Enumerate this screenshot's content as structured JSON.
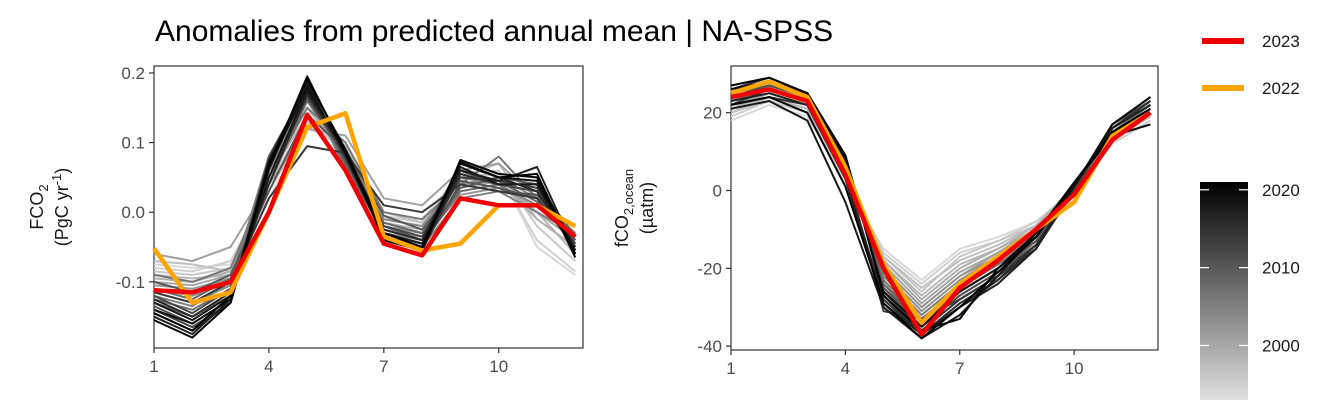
{
  "title": "Anomalies from predicted annual mean | NA-SPSS",
  "legend": {
    "items": [
      {
        "label": "2023",
        "color": "#ee0000"
      },
      {
        "label": "2022",
        "color": "#ffa500"
      }
    ]
  },
  "colorbar": {
    "range": [
      1993,
      2021
    ],
    "ticks": [
      2000,
      2010,
      2020
    ],
    "color_low": "#e0e0e0",
    "color_high": "#000000"
  },
  "chart_data": [
    {
      "type": "line",
      "ylabel_line1": "FCO",
      "ylabel_sub": "2",
      "ylabel_line2_pre": "(PgC yr",
      "ylabel_sup": "-1",
      "ylabel_line2_post": ")",
      "x": [
        1,
        2,
        3,
        4,
        5,
        6,
        7,
        8,
        9,
        10,
        11,
        12
      ],
      "xlim": [
        1,
        12.2
      ],
      "ylim": [
        -0.195,
        0.21
      ],
      "xticks": [
        1,
        4,
        7,
        10
      ],
      "yticks": [
        -0.1,
        0.0,
        0.1,
        0.2
      ],
      "ytick_labels": [
        "-0.1",
        "0.0",
        "0.1",
        "0.2"
      ],
      "highlight": [
        {
          "name": "2023",
          "color": "#ee0000",
          "values": [
            -0.112,
            -0.115,
            -0.1,
            0.0,
            0.14,
            0.06,
            -0.045,
            -0.062,
            0.02,
            0.01,
            0.01,
            -0.035
          ]
        },
        {
          "name": "2022",
          "color": "#ffa500",
          "values": [
            -0.052,
            -0.13,
            -0.115,
            0.0,
            0.122,
            0.142,
            -0.035,
            -0.055,
            -0.045,
            0.01,
            0.01,
            -0.02
          ]
        }
      ],
      "background": [
        {
          "year": 1994,
          "values": [
            -0.075,
            -0.08,
            -0.075,
            0.02,
            0.12,
            0.1,
            -0.01,
            -0.01,
            0.055,
            0.06,
            -0.05,
            -0.09
          ]
        },
        {
          "year": 1995,
          "values": [
            -0.08,
            -0.085,
            -0.07,
            0.03,
            0.125,
            0.09,
            -0.005,
            -0.015,
            0.05,
            0.055,
            -0.04,
            -0.085
          ]
        },
        {
          "year": 1996,
          "values": [
            -0.085,
            -0.09,
            -0.08,
            0.04,
            0.135,
            0.085,
            -0.01,
            -0.02,
            0.045,
            0.06,
            -0.02,
            -0.07
          ]
        },
        {
          "year": 1997,
          "values": [
            -0.07,
            -0.075,
            -0.085,
            0.03,
            0.13,
            0.095,
            0.0,
            -0.015,
            0.05,
            0.07,
            -0.01,
            -0.05
          ]
        },
        {
          "year": 1998,
          "values": [
            -0.09,
            -0.095,
            -0.09,
            0.05,
            0.14,
            0.09,
            -0.015,
            -0.025,
            0.04,
            0.05,
            0.0,
            -0.06
          ]
        },
        {
          "year": 1999,
          "values": [
            -0.095,
            -0.1,
            -0.085,
            0.06,
            0.15,
            0.08,
            -0.02,
            -0.03,
            0.035,
            0.045,
            -0.01,
            -0.05
          ]
        },
        {
          "year": 2000,
          "values": [
            -0.1,
            -0.105,
            -0.09,
            0.05,
            0.16,
            0.075,
            -0.025,
            -0.035,
            0.03,
            0.04,
            0.0,
            -0.04
          ]
        },
        {
          "year": 2001,
          "values": [
            -0.06,
            -0.07,
            -0.05,
            0.04,
            0.12,
            0.11,
            0.02,
            0.01,
            0.06,
            0.07,
            0.02,
            -0.035
          ]
        },
        {
          "year": 2002,
          "values": [
            -0.105,
            -0.11,
            -0.095,
            0.07,
            0.165,
            0.07,
            -0.03,
            -0.04,
            0.025,
            0.035,
            0.01,
            -0.035
          ]
        },
        {
          "year": 2003,
          "values": [
            -0.11,
            -0.12,
            -0.1,
            0.06,
            0.17,
            0.08,
            -0.02,
            -0.03,
            0.04,
            0.05,
            0.02,
            -0.045
          ]
        },
        {
          "year": 2004,
          "values": [
            -0.115,
            -0.13,
            -0.105,
            0.05,
            0.175,
            0.075,
            -0.01,
            -0.02,
            0.05,
            0.04,
            0.01,
            -0.04
          ]
        },
        {
          "year": 2005,
          "values": [
            -0.12,
            -0.135,
            -0.1,
            0.08,
            0.18,
            0.06,
            -0.04,
            -0.05,
            0.02,
            0.03,
            0.0,
            -0.03
          ]
        },
        {
          "year": 2006,
          "values": [
            -0.09,
            -0.1,
            -0.08,
            0.05,
            0.15,
            0.1,
            0.0,
            -0.01,
            0.04,
            0.08,
            0.02,
            -0.03
          ]
        },
        {
          "year": 2007,
          "values": [
            -0.125,
            -0.14,
            -0.11,
            0.07,
            0.185,
            0.065,
            -0.03,
            -0.045,
            0.03,
            0.04,
            0.03,
            -0.04
          ]
        },
        {
          "year": 2008,
          "values": [
            -0.11,
            -0.125,
            -0.095,
            0.04,
            0.16,
            0.085,
            -0.015,
            -0.03,
            0.05,
            0.045,
            0.015,
            -0.045
          ]
        },
        {
          "year": 2009,
          "values": [
            -0.13,
            -0.15,
            -0.12,
            0.06,
            0.19,
            0.07,
            -0.02,
            -0.04,
            0.035,
            0.05,
            0.04,
            -0.035
          ]
        },
        {
          "year": 2010,
          "values": [
            -0.1,
            -0.115,
            -0.09,
            0.03,
            0.14,
            0.09,
            -0.005,
            -0.025,
            0.045,
            0.035,
            0.02,
            -0.05
          ]
        },
        {
          "year": 2011,
          "values": [
            -0.135,
            -0.16,
            -0.125,
            0.08,
            0.18,
            0.075,
            -0.035,
            -0.05,
            0.04,
            0.03,
            0.025,
            -0.04
          ]
        },
        {
          "year": 2012,
          "values": [
            -0.12,
            -0.145,
            -0.11,
            0.05,
            0.165,
            0.08,
            -0.02,
            -0.035,
            0.06,
            0.04,
            0.03,
            -0.045
          ]
        },
        {
          "year": 2013,
          "values": [
            -0.14,
            -0.165,
            -0.13,
            0.07,
            0.175,
            0.085,
            -0.03,
            -0.045,
            0.05,
            0.045,
            0.035,
            -0.05
          ]
        },
        {
          "year": 2014,
          "values": [
            -0.115,
            -0.13,
            -0.1,
            0.02,
            0.095,
            0.085,
            0.01,
            0.0,
            0.04,
            0.03,
            0.02,
            -0.05
          ]
        },
        {
          "year": 2015,
          "values": [
            -0.145,
            -0.17,
            -0.13,
            0.06,
            0.19,
            0.09,
            -0.04,
            -0.055,
            0.055,
            0.04,
            0.04,
            -0.05
          ]
        },
        {
          "year": 2016,
          "values": [
            -0.125,
            -0.15,
            -0.115,
            0.04,
            0.17,
            0.085,
            -0.025,
            -0.04,
            0.07,
            0.05,
            0.03,
            -0.055
          ]
        },
        {
          "year": 2017,
          "values": [
            -0.15,
            -0.175,
            -0.125,
            0.075,
            0.185,
            0.08,
            -0.035,
            -0.05,
            0.06,
            0.045,
            0.065,
            -0.055
          ]
        },
        {
          "year": 2018,
          "values": [
            -0.13,
            -0.155,
            -0.12,
            0.05,
            0.175,
            0.09,
            -0.03,
            -0.045,
            0.065,
            0.04,
            0.04,
            -0.06
          ]
        },
        {
          "year": 2019,
          "values": [
            -0.14,
            -0.16,
            -0.125,
            0.065,
            0.18,
            0.085,
            -0.035,
            -0.05,
            0.07,
            0.05,
            0.045,
            -0.06
          ]
        },
        {
          "year": 2020,
          "values": [
            -0.155,
            -0.18,
            -0.13,
            0.07,
            0.19,
            0.09,
            -0.04,
            -0.055,
            0.075,
            0.055,
            0.05,
            -0.065
          ]
        },
        {
          "year": 2021,
          "values": [
            -0.145,
            -0.17,
            -0.12,
            0.065,
            0.195,
            0.085,
            -0.03,
            -0.05,
            0.072,
            0.05,
            0.055,
            -0.06
          ]
        }
      ]
    },
    {
      "type": "line",
      "ylabel_line1_pre": "fCO",
      "ylabel_sub": "2,ocean",
      "ylabel_line2": "(µatm)",
      "x": [
        1,
        2,
        3,
        4,
        5,
        6,
        7,
        8,
        9,
        10,
        11,
        12
      ],
      "xlim": [
        1,
        12.2
      ],
      "ylim": [
        -41,
        32
      ],
      "xticks": [
        1,
        4,
        7,
        10
      ],
      "yticks": [
        -40,
        -20,
        0,
        20
      ],
      "ytick_labels": [
        "-40",
        "-20",
        "0",
        "20"
      ],
      "highlight": [
        {
          "name": "2023",
          "color": "#ee0000",
          "values": [
            24,
            26,
            23,
            4,
            -20,
            -37,
            -25,
            -18,
            -10,
            -1,
            13,
            20
          ]
        },
        {
          "name": "2022",
          "color": "#ffa500",
          "values": [
            25,
            28,
            24,
            6,
            -19,
            -34,
            -24,
            -17,
            -10,
            -3,
            14,
            20
          ]
        }
      ],
      "background": [
        {
          "year": 1994,
          "values": [
            18,
            22,
            19,
            2,
            -15,
            -23,
            -15,
            -12,
            -8,
            0,
            12,
            18
          ]
        },
        {
          "year": 1995,
          "values": [
            19,
            23,
            20,
            3,
            -16,
            -24,
            -16,
            -13,
            -8,
            0,
            12,
            18
          ]
        },
        {
          "year": 1996,
          "values": [
            20,
            23,
            20,
            3,
            -17,
            -26,
            -17,
            -13,
            -9,
            0,
            13,
            19
          ]
        },
        {
          "year": 1997,
          "values": [
            20,
            24,
            21,
            4,
            -17,
            -25,
            -18,
            -14,
            -9,
            1,
            13,
            19
          ]
        },
        {
          "year": 1998,
          "values": [
            21,
            24,
            21,
            4,
            -18,
            -27,
            -19,
            -15,
            -9,
            1,
            13,
            20
          ]
        },
        {
          "year": 1999,
          "values": [
            21,
            25,
            22,
            5,
            -18,
            -28,
            -20,
            -15,
            -10,
            1,
            14,
            20
          ]
        },
        {
          "year": 2000,
          "values": [
            22,
            25,
            22,
            5,
            -19,
            -29,
            -21,
            -16,
            -10,
            1,
            14,
            20
          ]
        },
        {
          "year": 2001,
          "values": [
            22,
            25,
            22,
            6,
            -20,
            -30,
            -22,
            -16,
            -10,
            0,
            14,
            21
          ]
        },
        {
          "year": 2002,
          "values": [
            23,
            26,
            23,
            6,
            -20,
            -30,
            -22,
            -17,
            -11,
            0,
            14,
            21
          ]
        },
        {
          "year": 2003,
          "values": [
            23,
            26,
            23,
            6,
            -21,
            -31,
            -23,
            -17,
            -11,
            0,
            15,
            21
          ]
        },
        {
          "year": 2004,
          "values": [
            23,
            26,
            23,
            7,
            -22,
            -32,
            -24,
            -18,
            -11,
            0,
            15,
            21
          ]
        },
        {
          "year": 2005,
          "values": [
            24,
            27,
            24,
            7,
            -22,
            -32,
            -24,
            -18,
            -12,
            0,
            15,
            22
          ]
        },
        {
          "year": 2006,
          "values": [
            24,
            27,
            24,
            7,
            -23,
            -33,
            -25,
            -19,
            -12,
            0,
            15,
            22
          ]
        },
        {
          "year": 2007,
          "values": [
            24,
            27,
            24,
            8,
            -24,
            -33,
            -25,
            -19,
            -12,
            0,
            16,
            22
          ]
        },
        {
          "year": 2008,
          "values": [
            25,
            27,
            24,
            8,
            -24,
            -34,
            -26,
            -20,
            -13,
            0,
            16,
            22
          ]
        },
        {
          "year": 2009,
          "values": [
            25,
            28,
            25,
            8,
            -25,
            -34,
            -26,
            -20,
            -13,
            0,
            16,
            23
          ]
        },
        {
          "year": 2010,
          "values": [
            25,
            28,
            25,
            9,
            -25,
            -35,
            -27,
            -21,
            -13,
            0,
            16,
            23
          ]
        },
        {
          "year": 2011,
          "values": [
            24,
            27,
            24,
            8,
            -26,
            -35,
            -27,
            -21,
            -14,
            1,
            16,
            23
          ]
        },
        {
          "year": 2012,
          "values": [
            25,
            28,
            25,
            8,
            -26,
            -36,
            -28,
            -22,
            -14,
            1,
            17,
            23
          ]
        },
        {
          "year": 2013,
          "values": [
            22,
            26,
            23,
            6,
            -31,
            -33,
            -28,
            -22,
            -15,
            0,
            16,
            22
          ]
        },
        {
          "year": 2014,
          "values": [
            26,
            28,
            25,
            9,
            -27,
            -36,
            -28,
            -22,
            -14,
            1,
            17,
            24
          ]
        },
        {
          "year": 2015,
          "values": [
            22,
            24,
            22,
            4,
            -28,
            -37,
            -29,
            -23,
            -14,
            1,
            16,
            23
          ]
        },
        {
          "year": 2016,
          "values": [
            26,
            29,
            25,
            9,
            -27,
            -37,
            -30,
            -23,
            -15,
            1,
            17,
            24
          ]
        },
        {
          "year": 2017,
          "values": [
            23,
            25,
            22,
            3,
            -29,
            -37,
            -30,
            -24,
            -15,
            1,
            16,
            22
          ]
        },
        {
          "year": 2018,
          "values": [
            21,
            23,
            18,
            -3,
            -30,
            -38,
            -32,
            -22,
            -11,
            2,
            15,
            20
          ]
        },
        {
          "year": 2019,
          "values": [
            26,
            28,
            25,
            8,
            -26,
            -35,
            -26,
            -20,
            -12,
            1,
            17,
            24
          ]
        },
        {
          "year": 2020,
          "values": [
            27,
            29,
            25,
            9,
            -27,
            -36,
            -33,
            -20,
            -11,
            2,
            14,
            17
          ]
        },
        {
          "year": 2021,
          "values": [
            22,
            24,
            20,
            1,
            -29,
            -38,
            -30,
            -21,
            -12,
            2,
            15,
            21
          ]
        }
      ]
    }
  ]
}
